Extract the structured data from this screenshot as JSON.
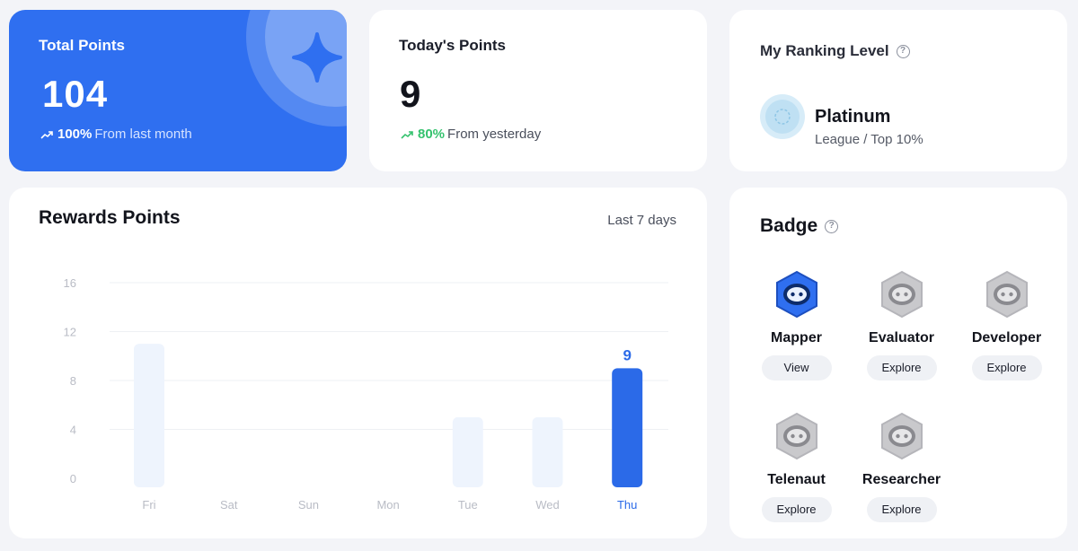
{
  "total_points": {
    "title": "Total Points",
    "value": "104",
    "pct": "100%",
    "from": "From last month"
  },
  "today_points": {
    "title": "Today's Points",
    "value": "9",
    "pct": "80%",
    "from": "From yesterday"
  },
  "ranking": {
    "title": "My Ranking Level",
    "level": "Platinum",
    "sub": "League / Top 10%"
  },
  "rewards": {
    "title": "Rewards Points",
    "range": "Last 7 days"
  },
  "chart_data": {
    "type": "bar",
    "categories": [
      "Fri",
      "Sat",
      "Sun",
      "Mon",
      "Tue",
      "Wed",
      "Thu"
    ],
    "values": [
      11,
      0,
      0,
      0,
      5,
      5,
      9
    ],
    "highlight_index": 6,
    "highlight_label": "9",
    "ylim": [
      0,
      16
    ],
    "yticks": [
      "0",
      "4",
      "8",
      "12",
      "16"
    ],
    "grid": true,
    "colors": {
      "bar": "#eef4fd",
      "highlight": "#2b6ae8",
      "axis_text": "#b9bcc5",
      "highlight_text": "#2b6ae8"
    }
  },
  "badge": {
    "title": "Badge",
    "items": [
      {
        "name": "Mapper",
        "action": "View",
        "icon": "mapper-badge-icon",
        "color": "#2f6ff0"
      },
      {
        "name": "Evaluator",
        "action": "Explore",
        "icon": "evaluator-badge-icon",
        "color": "#c9c9cc"
      },
      {
        "name": "Developer",
        "action": "Explore",
        "icon": "developer-badge-icon",
        "color": "#c9c9cc"
      },
      {
        "name": "Telenaut",
        "action": "Explore",
        "icon": "telenaut-badge-icon",
        "color": "#c9c9cc"
      },
      {
        "name": "Researcher",
        "action": "Explore",
        "icon": "researcher-badge-icon",
        "color": "#c9c9cc"
      }
    ]
  }
}
